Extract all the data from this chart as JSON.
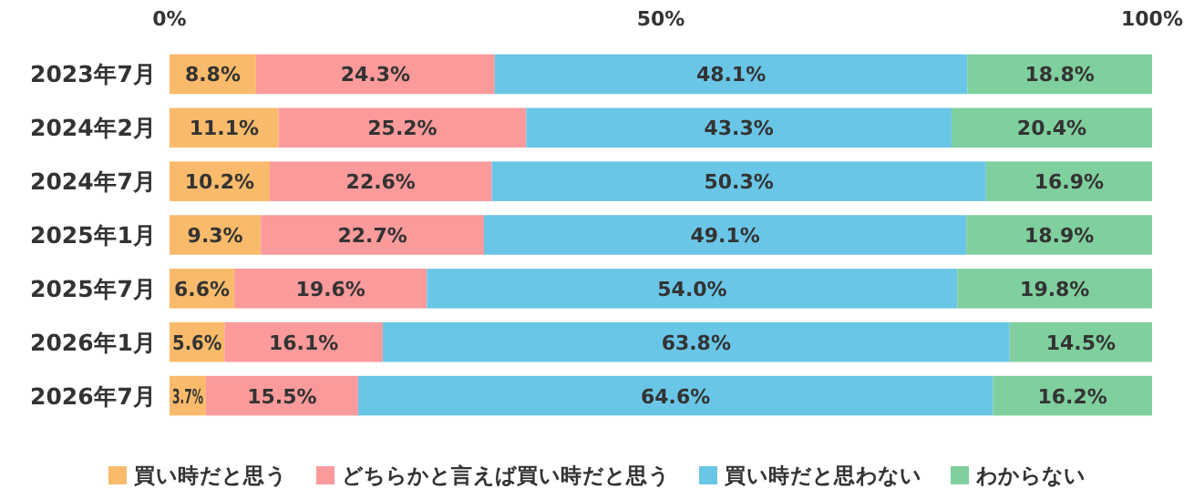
{
  "chart_data": {
    "type": "bar",
    "orientation": "horizontal",
    "stacked": true,
    "categories": [
      "2023年7月",
      "2024年2月",
      "2024年7月",
      "2025年1月",
      "2025年7月",
      "2026年1月",
      "2026年7月"
    ],
    "series": [
      {
        "name": "買い時だと思う",
        "color": "#f9bb6b",
        "values": [
          8.8,
          11.1,
          10.2,
          9.3,
          6.6,
          5.6,
          3.7
        ],
        "value_labels": [
          "8.8%",
          "11.1%",
          "10.2%",
          "9.3%",
          "6.6%",
          "5.6%",
          "3.7%"
        ]
      },
      {
        "name": "どちらかと言えば買い時だと思う",
        "color": "#fb9a9b",
        "values": [
          24.3,
          25.2,
          22.6,
          22.7,
          19.6,
          16.1,
          15.5
        ],
        "value_labels": [
          "24.3%",
          "25.2%",
          "22.6%",
          "22.7%",
          "19.6%",
          "16.1%",
          "15.5%"
        ]
      },
      {
        "name": "買い時だと思わない",
        "color": "#6ac6e7",
        "values": [
          48.1,
          43.3,
          50.3,
          49.1,
          54.0,
          63.8,
          64.6
        ],
        "value_labels": [
          "48.1%",
          "43.3%",
          "50.3%",
          "49.1%",
          "54.0%",
          "63.8%",
          "64.6%"
        ]
      },
      {
        "name": "わからない",
        "color": "#80cf9e",
        "values": [
          18.8,
          20.4,
          16.9,
          18.9,
          19.8,
          14.5,
          16.2
        ],
        "value_labels": [
          "18.8%",
          "20.4%",
          "16.9%",
          "18.9%",
          "19.8%",
          "14.5%",
          "16.2%"
        ]
      }
    ],
    "xlim": [
      0,
      100
    ],
    "xticks": [
      {
        "value": 0,
        "label": "0%"
      },
      {
        "value": 50,
        "label": "50%"
      },
      {
        "value": 100,
        "label": "100%"
      }
    ],
    "legend": "bottom"
  }
}
